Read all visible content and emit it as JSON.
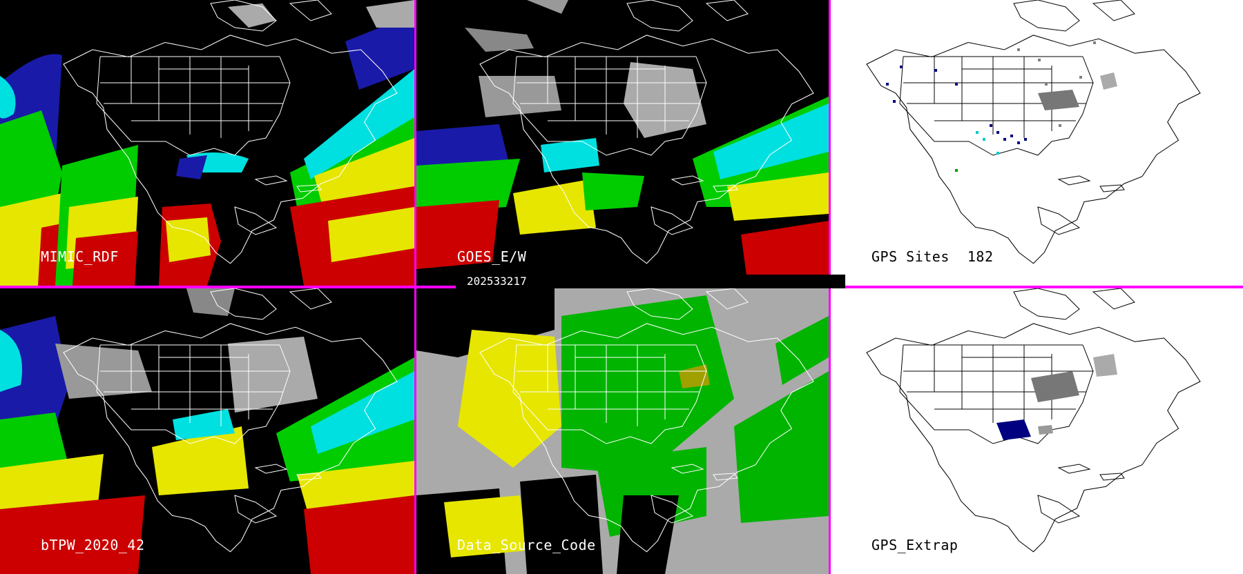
{
  "timestamp": "202533217",
  "panels": [
    {
      "id": "mimic",
      "label": "MIMIC_RDF"
    },
    {
      "id": "goes",
      "label": "GOES_E/W"
    },
    {
      "id": "gps_sites",
      "label": "GPS Sites",
      "count": "182"
    },
    {
      "id": "btpw",
      "label": "bTPW_2020_42"
    },
    {
      "id": "source",
      "label": "Data_Source_Code"
    },
    {
      "id": "gps_extrap",
      "label": "GPS_Extrap"
    }
  ],
  "colors": {
    "divider": "#ff00ff",
    "map_lines_dark": "#ffffff",
    "map_lines_light": "#000000",
    "tpw_scale": [
      "#000000",
      "#1a1aa8",
      "#00e0e0",
      "#00cc00",
      "#e6e600",
      "#cc0000"
    ],
    "source_codes": [
      "#e6e600",
      "#00b400",
      "#aaaaaa"
    ],
    "gps_sites": [
      "#000080",
      "#808080",
      "#00c8c8",
      "#00a000"
    ]
  }
}
